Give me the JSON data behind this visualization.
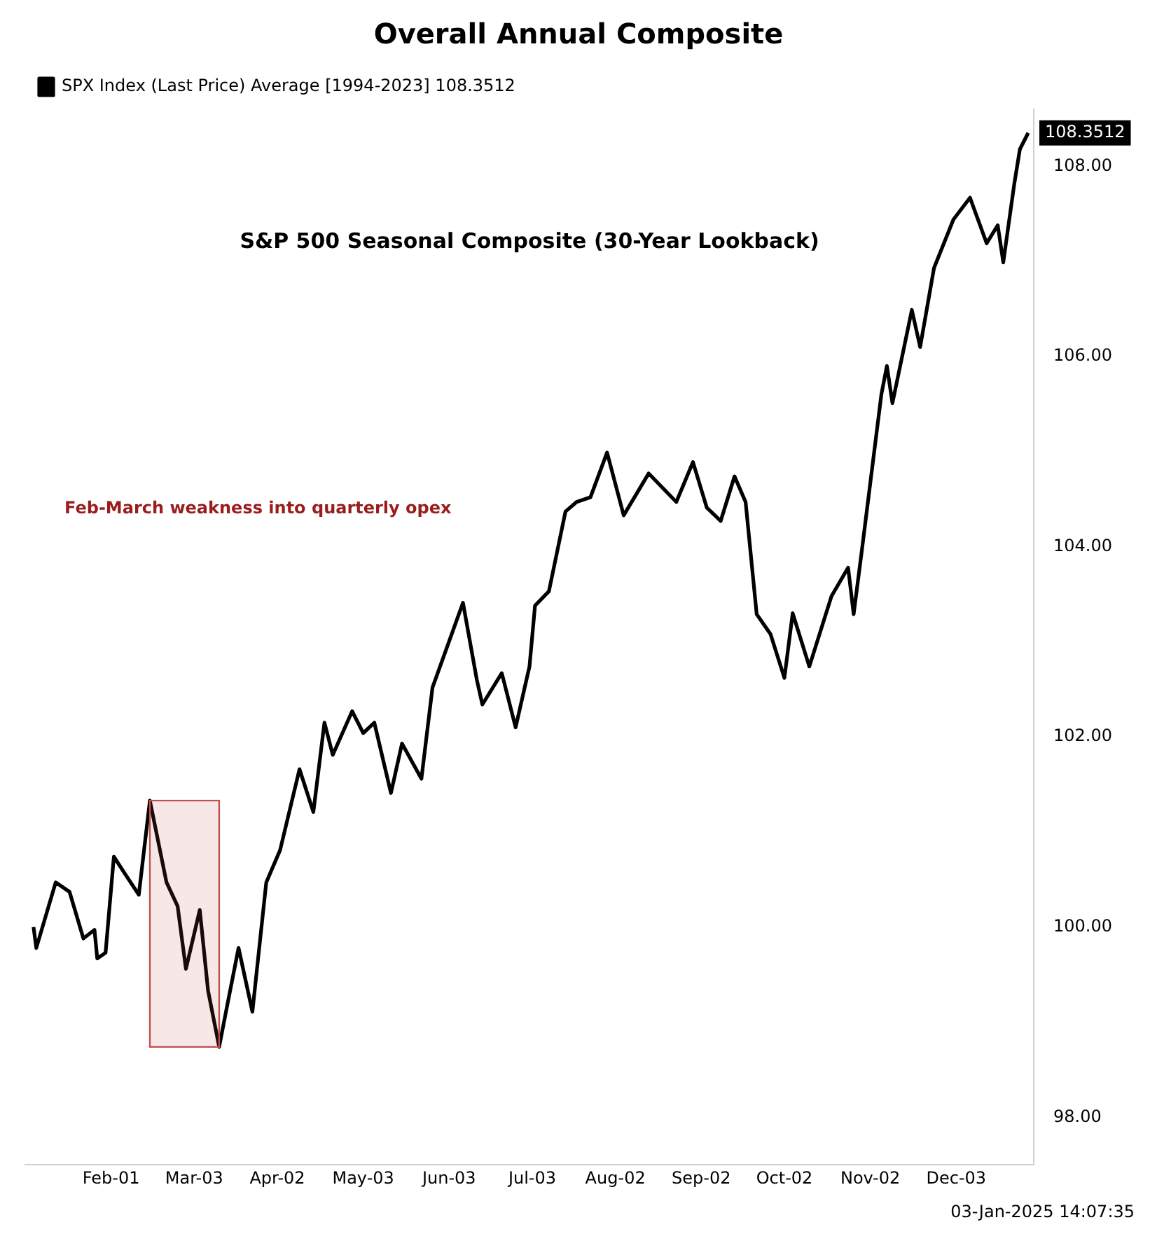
{
  "chart_data": {
    "type": "line",
    "title": "Overall Annual Composite",
    "subtitle": "S&P 500 Seasonal Composite (30-Year Lookback)",
    "annotations": [
      "Feb-March weakness into quarterly opex",
      "03-Jan-2025 14:07:35"
    ],
    "series": [
      {
        "name": "SPX Index (Last Price) Average [1994-2023] 108.3512",
        "color": "#000000",
        "x": [
          "--01-04",
          "--01-05",
          "--01-12",
          "--01-17",
          "--01-22",
          "--01-26",
          "--01-27",
          "--01-30",
          "--02-02",
          "--02-06",
          "--02-11",
          "--02-15",
          "--02-21",
          "--02-25",
          "--02-28",
          "--03-05",
          "--03-08",
          "--03-12",
          "--03-15",
          "--03-19",
          "--03-24",
          "--03-29",
          "--04-03",
          "--04-10",
          "--04-15",
          "--04-19",
          "--04-22",
          "--04-29",
          "--05-03",
          "--05-07",
          "--05-13",
          "--05-17",
          "--05-24",
          "--05-28",
          "--06-08",
          "--06-13",
          "--06-15",
          "--06-22",
          "--06-27",
          "--07-02",
          "--07-04",
          "--07-09",
          "--07-15",
          "--07-19",
          "--07-24",
          "--07-30",
          "--08-05",
          "--08-14",
          "--08-24",
          "--08-30",
          "--09-04",
          "--09-09",
          "--09-14",
          "--09-18",
          "--09-22",
          "--09-27",
          "--10-02",
          "--10-05",
          "--10-11",
          "--10-19",
          "--10-25",
          "--10-27",
          "--10-30",
          "--11-06",
          "--11-08",
          "--11-10",
          "--11-17",
          "--11-20",
          "--11-25",
          "--12-02",
          "--12-08",
          "--12-14",
          "--12-18",
          "--12-20",
          "--12-24",
          "--12-26",
          "--12-29"
        ],
        "values": [
          100.0,
          99.78,
          100.47,
          100.37,
          99.88,
          99.97,
          99.67,
          99.73,
          100.74,
          100.56,
          100.34,
          101.33,
          100.47,
          100.22,
          99.56,
          100.18,
          99.33,
          98.74,
          99.19,
          99.78,
          99.11,
          100.47,
          100.81,
          101.66,
          101.21,
          102.15,
          101.81,
          102.27,
          102.04,
          102.15,
          101.41,
          101.93,
          101.56,
          102.52,
          103.41,
          102.6,
          102.34,
          102.67,
          102.1,
          102.74,
          103.38,
          103.53,
          104.37,
          104.47,
          104.52,
          104.99,
          104.33,
          104.77,
          104.47,
          104.89,
          104.41,
          104.27,
          104.74,
          104.47,
          103.29,
          103.08,
          102.62,
          103.3,
          102.74,
          103.48,
          103.78,
          103.29,
          103.97,
          105.6,
          105.9,
          105.51,
          106.49,
          106.1,
          106.93,
          107.44,
          107.67,
          107.19,
          107.38,
          106.99,
          107.82,
          108.18,
          108.3512
        ],
        "value_labels": [
          null,
          null,
          null,
          null,
          null,
          null,
          null,
          null,
          null,
          null,
          null,
          null,
          null,
          null,
          null,
          null,
          null,
          null,
          null,
          null,
          null,
          null,
          null,
          null,
          null,
          null,
          null,
          null,
          null,
          null,
          null,
          null,
          null,
          null,
          null,
          null,
          null,
          null,
          null,
          null,
          null,
          null,
          null,
          null,
          null,
          null,
          null,
          null,
          null,
          null,
          null,
          null,
          null,
          null,
          null,
          null,
          null,
          null,
          null,
          null,
          null,
          null,
          null,
          null,
          null,
          null,
          null,
          null,
          null,
          null,
          null,
          null,
          null,
          null,
          null,
          null,
          "108.3512"
        ]
      }
    ],
    "xlim": [
      "--01-01",
      "--12-31"
    ],
    "xticks": [
      {
        "value": "--02-01",
        "label": "Feb-01"
      },
      {
        "value": "--03-03",
        "label": "Mar-03"
      },
      {
        "value": "--04-02",
        "label": "Apr-02"
      },
      {
        "value": "--05-03",
        "label": "May-03"
      },
      {
        "value": "--06-03",
        "label": "Jun-03"
      },
      {
        "value": "--07-03",
        "label": "Jul-03"
      },
      {
        "value": "--08-02",
        "label": "Aug-02"
      },
      {
        "value": "--09-02",
        "label": "Sep-02"
      },
      {
        "value": "--10-02",
        "label": "Oct-02"
      },
      {
        "value": "--11-02",
        "label": "Nov-02"
      },
      {
        "value": "--12-03",
        "label": "Dec-03"
      }
    ],
    "ylim": [
      97.5,
      108.6
    ],
    "yticks": [
      {
        "value": 98,
        "label": "98.00"
      },
      {
        "value": 100,
        "label": "100.00"
      },
      {
        "value": 102,
        "label": "102.00"
      },
      {
        "value": 104,
        "label": "104.00"
      },
      {
        "value": 106,
        "label": "106.00"
      },
      {
        "value": 108,
        "label": "108.00"
      }
    ],
    "bands": [
      {
        "axis": "x",
        "from": "--02-15",
        "to": "--03-12",
        "color": "#c0504d"
      }
    ],
    "legend": "top left",
    "grid": false,
    "marker": "none",
    "line_style": "solid"
  }
}
